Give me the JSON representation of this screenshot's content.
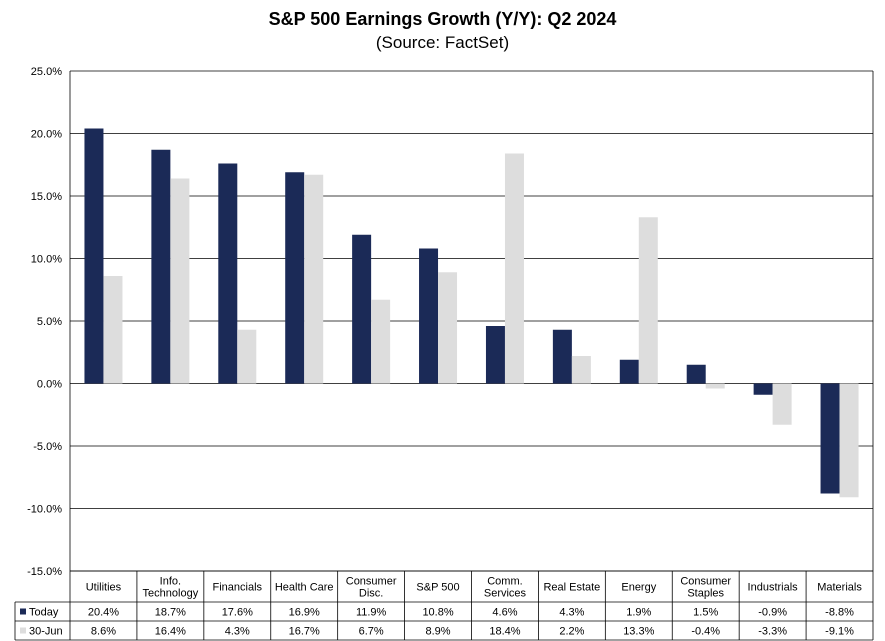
{
  "chart_data": {
    "type": "bar",
    "title": "S&P 500 Earnings Growth (Y/Y): Q2 2024",
    "subtitle": "(Source: FactSet)",
    "categories": [
      [
        "Utilities"
      ],
      [
        "Info.",
        "Technology"
      ],
      [
        "Financials"
      ],
      [
        "Health Care"
      ],
      [
        "Consumer",
        "Disc."
      ],
      [
        "S&P 500"
      ],
      [
        "Comm.",
        "Services"
      ],
      [
        "Real Estate"
      ],
      [
        "Energy"
      ],
      [
        "Consumer",
        "Staples"
      ],
      [
        "Industrials"
      ],
      [
        "Materials"
      ]
    ],
    "series": [
      {
        "name": "Today",
        "color": "#1b2a57",
        "values": [
          20.4,
          18.7,
          17.6,
          16.9,
          11.9,
          10.8,
          4.6,
          4.3,
          1.9,
          1.5,
          -0.9,
          -8.8
        ],
        "labels": [
          "20.4%",
          "18.7%",
          "17.6%",
          "16.9%",
          "11.9%",
          "10.8%",
          "4.6%",
          "4.3%",
          "1.9%",
          "1.5%",
          "-0.9%",
          "-8.8%"
        ]
      },
      {
        "name": "30-Jun",
        "color": "#dddddd",
        "values": [
          8.6,
          16.4,
          4.3,
          16.7,
          6.7,
          8.9,
          18.4,
          2.2,
          13.3,
          -0.4,
          -3.3,
          -9.1
        ],
        "labels": [
          "8.6%",
          "16.4%",
          "4.3%",
          "16.7%",
          "6.7%",
          "8.9%",
          "18.4%",
          "2.2%",
          "13.3%",
          "-0.4%",
          "-3.3%",
          "-9.1%"
        ]
      }
    ],
    "ylim": [
      -15,
      25
    ],
    "yticks": [
      25,
      20,
      15,
      10,
      5,
      0,
      -5,
      -10,
      -15
    ],
    "ytick_labels": [
      "25.0%",
      "20.0%",
      "15.0%",
      "10.0%",
      "5.0%",
      "0.0%",
      "-5.0%",
      "-10.0%",
      "-15.0%"
    ],
    "grid": true,
    "legend": "data-table"
  }
}
